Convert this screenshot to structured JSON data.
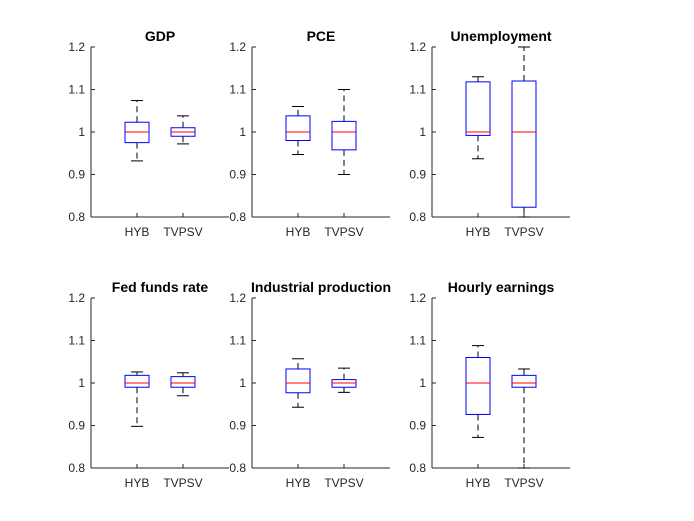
{
  "chart_data": [
    {
      "type": "box",
      "title": "GDP",
      "categories": [
        "HYB",
        "TVPSV"
      ],
      "ylim": [
        0.8,
        1.2
      ],
      "yticks": [
        "0.8",
        "0.9",
        "1",
        "1.1",
        "1.2"
      ],
      "boxes": [
        {
          "name": "HYB",
          "whisker_low": 0.932,
          "q1": 0.975,
          "median": 1.0,
          "q3": 1.023,
          "whisker_high": 1.074
        },
        {
          "name": "TVPSV",
          "whisker_low": 0.972,
          "q1": 0.99,
          "median": 1.0,
          "q3": 1.01,
          "whisker_high": 1.038
        }
      ]
    },
    {
      "type": "box",
      "title": "PCE",
      "categories": [
        "HYB",
        "TVPSV"
      ],
      "ylim": [
        0.8,
        1.2
      ],
      "yticks": [
        "0.8",
        "0.9",
        "1",
        "1.1",
        "1.2"
      ],
      "boxes": [
        {
          "name": "HYB",
          "whisker_low": 0.947,
          "q1": 0.98,
          "median": 1.0,
          "q3": 1.038,
          "whisker_high": 1.06
        },
        {
          "name": "TVPSV",
          "whisker_low": 0.9,
          "q1": 0.958,
          "median": 1.0,
          "q3": 1.025,
          "whisker_high": 1.1
        }
      ]
    },
    {
      "type": "box",
      "title": "Unemployment",
      "categories": [
        "HYB",
        "TVPSV"
      ],
      "ylim": [
        0.8,
        1.2
      ],
      "yticks": [
        "0.8",
        "0.9",
        "1",
        "1.1",
        "1.2"
      ],
      "boxes": [
        {
          "name": "HYB",
          "whisker_low": 0.937,
          "q1": 0.992,
          "median": 1.0,
          "q3": 1.118,
          "whisker_high": 1.13
        },
        {
          "name": "TVPSV",
          "whisker_low": 0.8,
          "q1": 0.823,
          "median": 1.0,
          "q3": 1.12,
          "whisker_high": 1.2
        }
      ]
    },
    {
      "type": "box",
      "title": "Fed funds rate",
      "categories": [
        "HYB",
        "TVPSV"
      ],
      "ylim": [
        0.8,
        1.2
      ],
      "yticks": [
        "0.8",
        "0.9",
        "1",
        "1.1",
        "1.2"
      ],
      "boxes": [
        {
          "name": "HYB",
          "whisker_low": 0.898,
          "q1": 0.99,
          "median": 1.0,
          "q3": 1.018,
          "whisker_high": 1.026
        },
        {
          "name": "TVPSV",
          "whisker_low": 0.97,
          "q1": 0.99,
          "median": 1.0,
          "q3": 1.015,
          "whisker_high": 1.024
        }
      ]
    },
    {
      "type": "box",
      "title": "Industrial production",
      "categories": [
        "HYB",
        "TVPSV"
      ],
      "ylim": [
        0.8,
        1.2
      ],
      "yticks": [
        "0.8",
        "0.9",
        "1",
        "1.1",
        "1.2"
      ],
      "boxes": [
        {
          "name": "HYB",
          "whisker_low": 0.943,
          "q1": 0.977,
          "median": 1.0,
          "q3": 1.033,
          "whisker_high": 1.057
        },
        {
          "name": "TVPSV",
          "whisker_low": 0.978,
          "q1": 0.99,
          "median": 1.0,
          "q3": 1.008,
          "whisker_high": 1.035
        }
      ]
    },
    {
      "type": "box",
      "title": "Hourly earnings",
      "categories": [
        "HYB",
        "TVPSV"
      ],
      "ylim": [
        0.8,
        1.2
      ],
      "yticks": [
        "0.8",
        "0.9",
        "1",
        "1.1",
        "1.2"
      ],
      "boxes": [
        {
          "name": "HYB",
          "whisker_low": 0.872,
          "q1": 0.926,
          "median": 1.0,
          "q3": 1.06,
          "whisker_high": 1.088
        },
        {
          "name": "TVPSV",
          "whisker_low": 0.8,
          "q1": 0.99,
          "median": 1.0,
          "q3": 1.018,
          "whisker_high": 1.033
        }
      ]
    }
  ],
  "colors": {
    "box_edge": "#0000ff",
    "median": "#ff0000",
    "whisker": "#000000",
    "axis": "#262626"
  }
}
